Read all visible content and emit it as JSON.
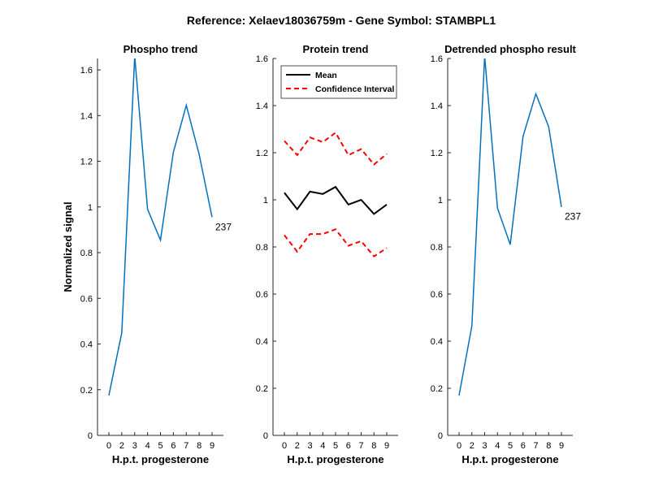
{
  "figure": {
    "title": "Reference:  Xelaev18036759m - Gene Symbol:  STAMBPL1"
  },
  "colors": {
    "phospho_line": "#0072BD",
    "mean_line": "#000000",
    "ci_line": "#FF0000",
    "axis": "#262626"
  },
  "chart_data": [
    {
      "type": "line",
      "title": "Phospho trend",
      "xlabel": "H.p.t. progesterone",
      "ylabel": "Normalized signal",
      "categories": [
        "0",
        "2",
        "3",
        "4",
        "5",
        "6",
        "7",
        "8",
        "9"
      ],
      "ylim": [
        0,
        1.65
      ],
      "yticks": [
        "0",
        "0.2",
        "0.4",
        "0.6",
        "0.8",
        "1",
        "1.2",
        "1.4",
        "1.6"
      ],
      "grid": false,
      "series": [
        {
          "values": [
            0.175,
            0.45,
            1.66,
            0.99,
            0.855,
            1.24,
            1.445,
            1.23,
            0.955
          ],
          "style": "solid",
          "color_key": "phospho_line"
        }
      ],
      "annotation": {
        "text": "237"
      }
    },
    {
      "type": "line",
      "title": "Protein trend",
      "xlabel": "H.p.t. progesterone",
      "ylabel": "",
      "categories": [
        "0",
        "2",
        "3",
        "4",
        "5",
        "6",
        "7",
        "8",
        "9"
      ],
      "ylim": [
        0,
        1.6
      ],
      "yticks": [
        "0",
        "0.2",
        "0.4",
        "0.6",
        "0.8",
        "1",
        "1.2",
        "1.4",
        "1.6"
      ],
      "grid": false,
      "legend": {
        "placement": "top-left",
        "entries": [
          "Mean",
          "Confidence Interval"
        ]
      },
      "series": [
        {
          "name": "Mean",
          "values": [
            1.03,
            0.96,
            1.035,
            1.025,
            1.055,
            0.98,
            1.0,
            0.94,
            0.98
          ],
          "style": "solid",
          "color_key": "mean_line"
        },
        {
          "name": "Confidence Interval",
          "values": [
            1.25,
            1.19,
            1.265,
            1.245,
            1.285,
            1.19,
            1.215,
            1.15,
            1.195
          ],
          "style": "dashed",
          "color_key": "ci_line"
        },
        {
          "values": [
            0.85,
            0.78,
            0.855,
            0.855,
            0.875,
            0.805,
            0.825,
            0.76,
            0.795
          ],
          "style": "dashed",
          "color_key": "ci_line"
        }
      ]
    },
    {
      "type": "line",
      "title": "Detrended phospho result",
      "xlabel": "H.p.t. progesterone",
      "ylabel": "",
      "categories": [
        "0",
        "2",
        "3",
        "4",
        "5",
        "6",
        "7",
        "8",
        "9"
      ],
      "ylim": [
        0,
        1.6
      ],
      "yticks": [
        "0",
        "0.2",
        "0.4",
        "0.6",
        "0.8",
        "1",
        "1.2",
        "1.4",
        "1.6"
      ],
      "grid": false,
      "series": [
        {
          "values": [
            0.17,
            0.465,
            1.61,
            0.965,
            0.81,
            1.27,
            1.45,
            1.31,
            0.97
          ],
          "style": "solid",
          "color_key": "phospho_line"
        }
      ],
      "annotation": {
        "text": "237"
      }
    }
  ]
}
